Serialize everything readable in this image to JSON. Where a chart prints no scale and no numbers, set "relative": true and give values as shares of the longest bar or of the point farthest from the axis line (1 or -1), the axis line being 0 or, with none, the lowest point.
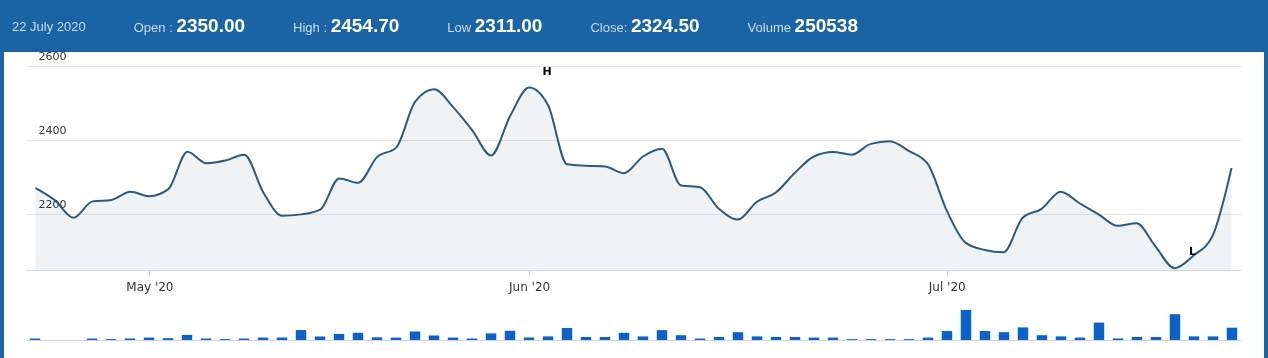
{
  "chart_data": [
    {
      "type": "area",
      "title": "22 July 2020",
      "annotations": [
        "Open : 2350.00",
        "High : 2454.70",
        "Low 2311.00",
        "Close: 2324.50",
        "Volume 250538",
        {
          "text": "H",
          "x": "Jun '20",
          "y": 2542
        },
        {
          "text": "L",
          "y": 2055
        }
      ],
      "categories": [
        null,
        null,
        null,
        null,
        null,
        null,
        "May '20",
        null,
        null,
        null,
        null,
        null,
        null,
        null,
        null,
        null,
        null,
        null,
        null,
        null,
        null,
        null,
        null,
        null,
        null,
        null,
        "Jun '20",
        null,
        null,
        null,
        null,
        null,
        null,
        null,
        null,
        null,
        null,
        null,
        null,
        null,
        null,
        null,
        null,
        null,
        null,
        null,
        null,
        null,
        "Jul '20",
        null,
        null,
        null,
        null,
        null,
        null,
        null,
        null,
        null,
        null,
        null,
        null,
        null,
        null,
        null
      ],
      "series": [
        {
          "color": "#2d5a7b",
          "values": [
            2271,
            2239,
            2191,
            2235,
            2239,
            2261,
            2249,
            2268,
            2369,
            2338,
            2345,
            2361,
            2259,
            2196,
            2200,
            2213,
            2297,
            2285,
            2355,
            2380,
            2504,
            2537,
            2489,
            2427,
            2359,
            2465,
            2542,
            2494,
            2335,
            2331,
            2329,
            2311,
            2356,
            2377,
            2278,
            2273,
            2215,
            2186,
            2234,
            2259,
            2312,
            2356,
            2368,
            2361,
            2390,
            2397,
            2371,
            2336,
            2210,
            2123,
            2104,
            2098,
            2191,
            2215,
            2261,
            2230,
            2200,
            2169,
            2176,
            2113,
            2055,
            2089,
            2142,
            2325
          ]
        }
      ],
      "ylim": [
        2050,
        2600
      ],
      "yticks": [
        2200,
        2400,
        2600
      ],
      "grid": "y"
    },
    {
      "type": "bar",
      "relative": true,
      "categories": [
        null,
        null,
        null,
        null,
        null,
        null,
        null,
        null,
        null,
        null,
        null,
        null,
        null,
        null,
        null,
        null,
        null,
        null,
        null,
        null,
        null,
        null,
        null,
        null,
        null,
        null,
        null,
        null,
        null,
        null,
        null,
        null,
        null,
        null,
        null,
        null,
        null,
        null,
        null,
        null,
        null,
        null,
        null,
        null,
        null,
        null,
        null,
        null,
        null,
        null,
        null,
        null,
        null,
        null,
        null,
        null,
        null,
        null,
        null,
        null,
        null,
        null,
        null,
        null
      ],
      "series": [
        {
          "color": "#0b63c9",
          "values": [
            0.05,
            0,
            0,
            0.05,
            0.03,
            0.05,
            0.08,
            0.06,
            0.17,
            0.05,
            0.03,
            0.05,
            0.08,
            0.08,
            0.33,
            0.12,
            0.2,
            0.24,
            0.09,
            0.08,
            0.28,
            0.15,
            0.08,
            0.05,
            0.22,
            0.31,
            0.08,
            0.12,
            0.4,
            0.1,
            0.1,
            0.24,
            0.12,
            0.33,
            0.16,
            0.05,
            0.1,
            0.26,
            0.12,
            0.1,
            0.1,
            0.08,
            0.08,
            0.03,
            0.03,
            0.03,
            0.03,
            0.08,
            0.3,
            1,
            0.3,
            0.26,
            0.42,
            0.16,
            0.12,
            0.08,
            0.58,
            0.05,
            0.1,
            0.1,
            0.86,
            0.12,
            0.12,
            0.41
          ]
        }
      ]
    }
  ]
}
